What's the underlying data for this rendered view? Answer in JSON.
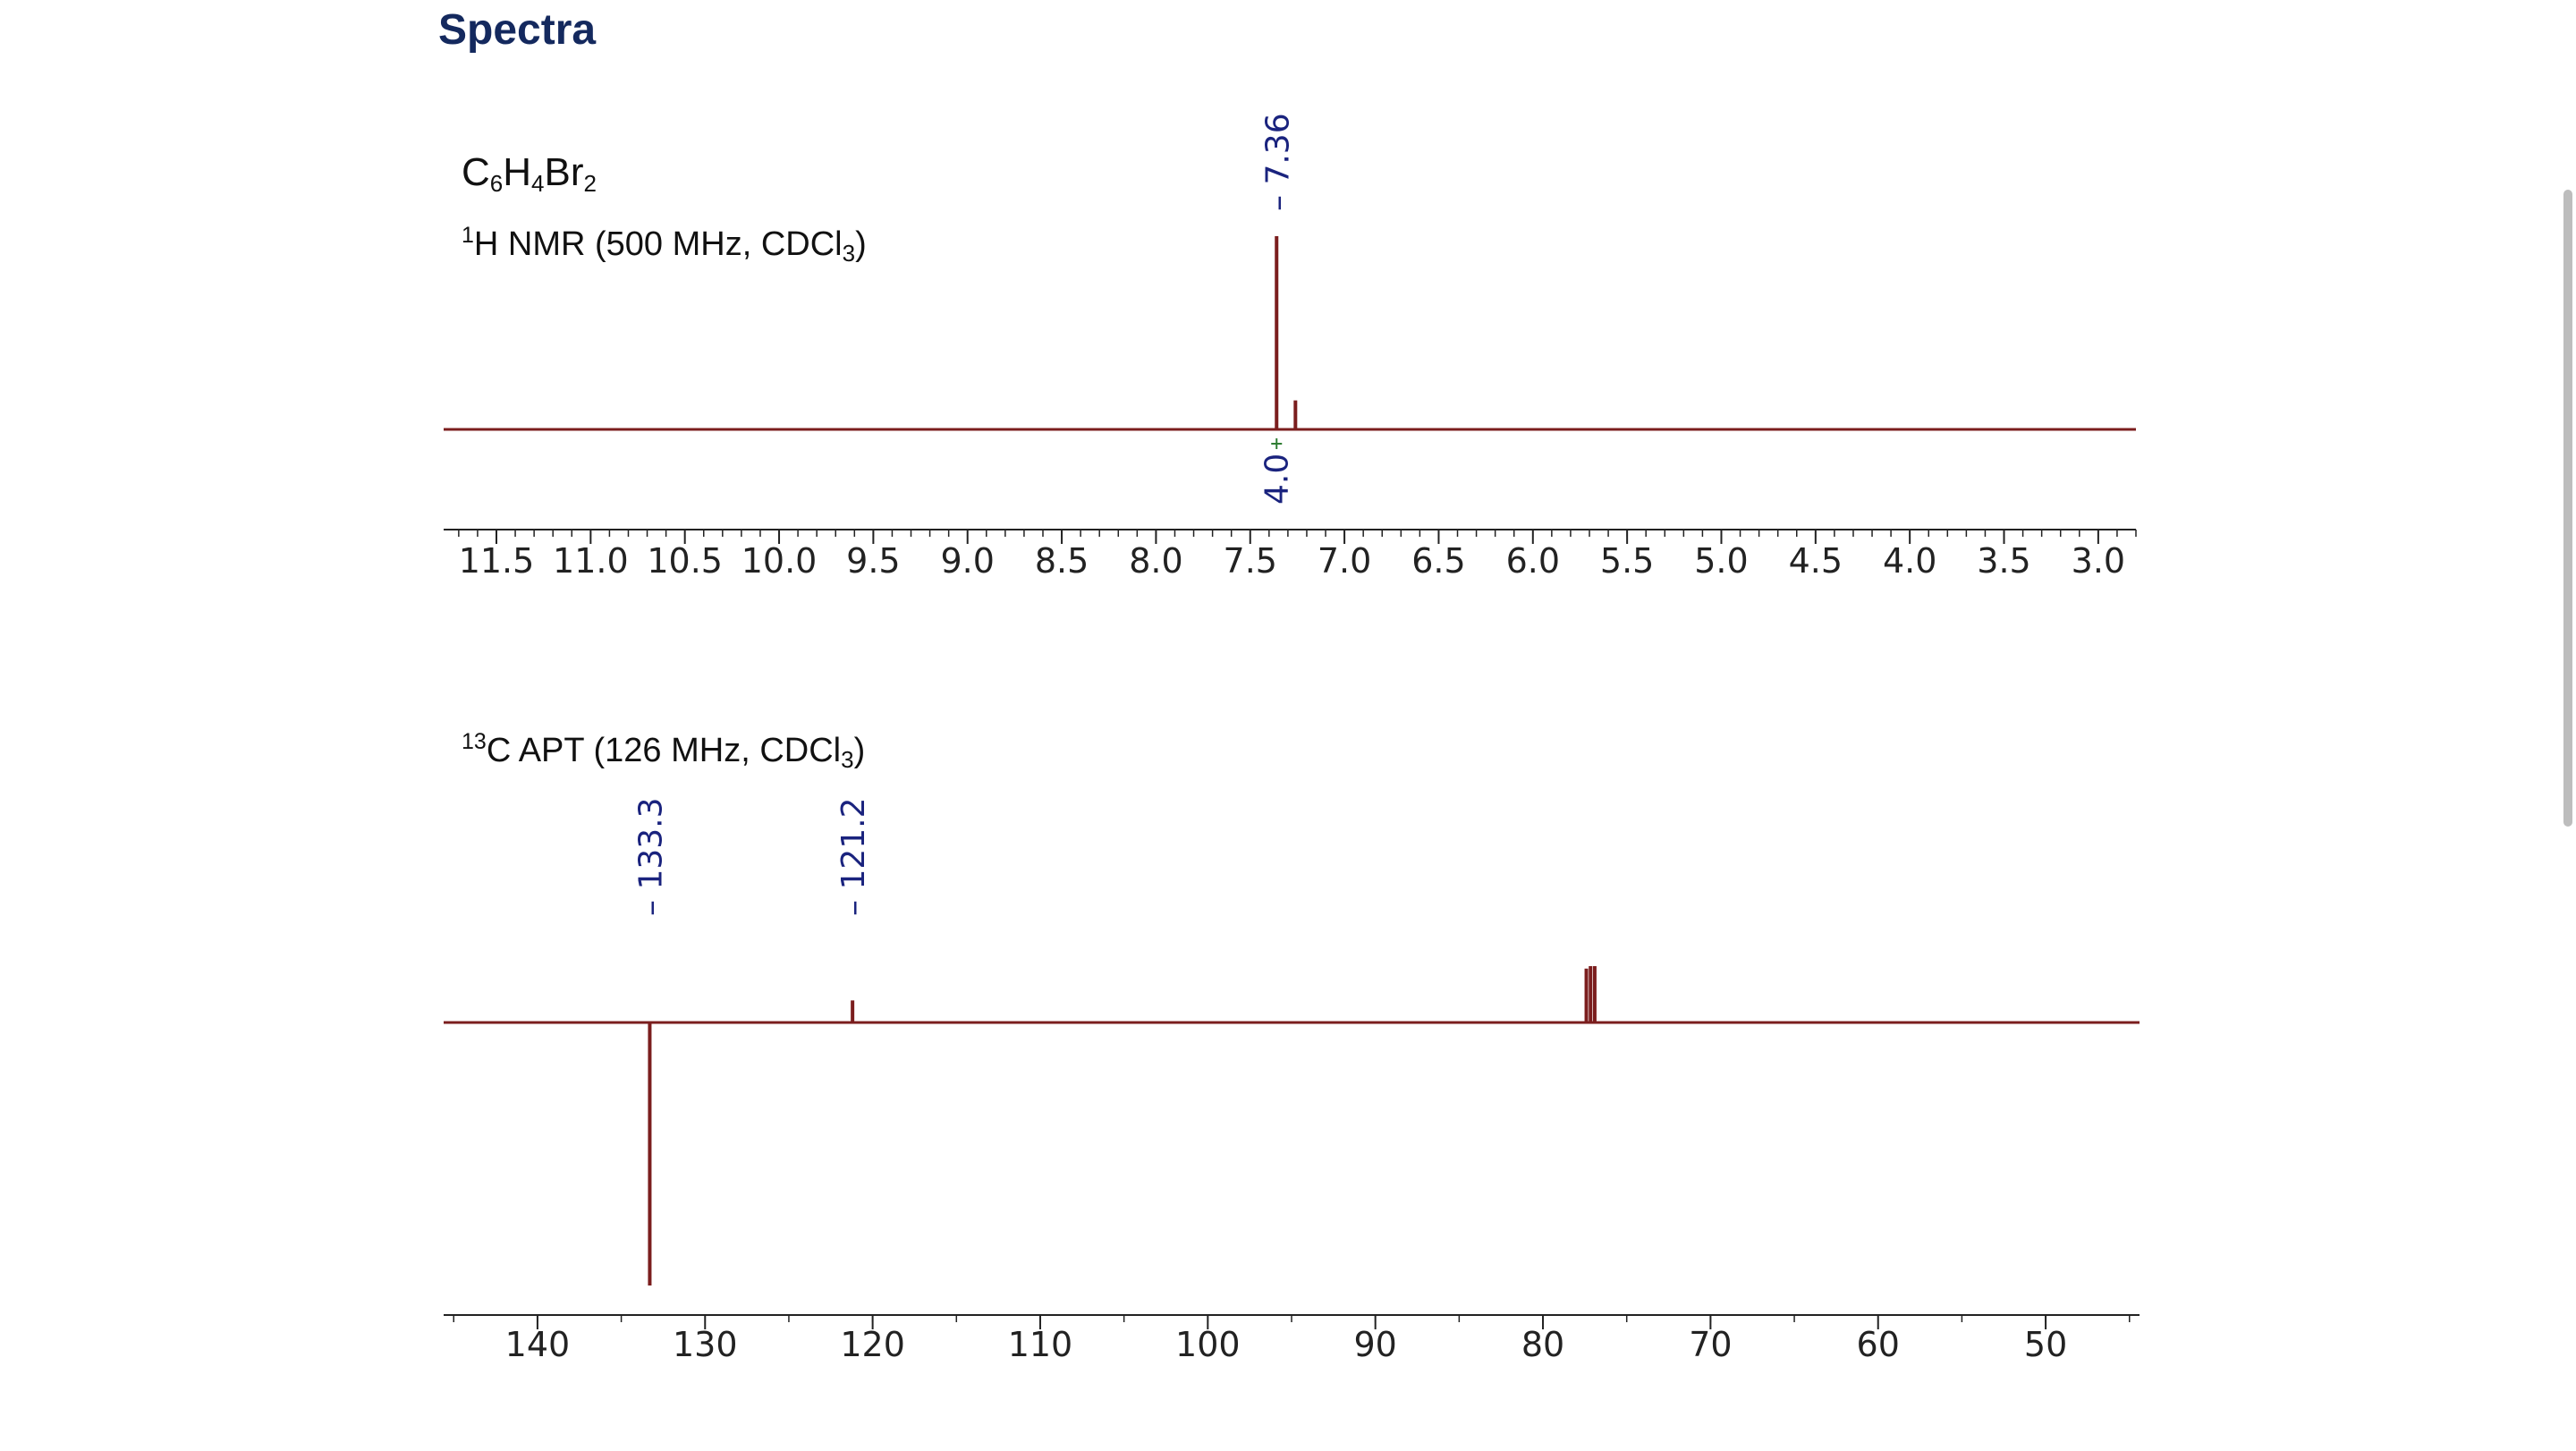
{
  "page": {
    "title": "Spectra",
    "formula": {
      "parts": [
        "C",
        "6",
        "H",
        "4",
        "Br",
        "2"
      ]
    },
    "h_label": {
      "sup": "1",
      "text": "H NMR (500 MHz, CDCl",
      "sub": "3",
      "close": ")"
    },
    "c_label": {
      "sup": "13",
      "text": "C APT (126 MHz, CDCl",
      "sub": "3",
      "close": ")"
    }
  },
  "colors": {
    "title": "#14295e",
    "spectrum": "#7b1e1e",
    "peak_label": "#1a237e",
    "integral": "#2e7d32",
    "axis": "#222222"
  },
  "chart_data": [
    {
      "type": "line",
      "title": "",
      "xlabel": "",
      "ylabel": "",
      "x_axis_reversed": true,
      "xlim": [
        11.78,
        2.8
      ],
      "x_ticks": [
        11.5,
        11.0,
        10.5,
        10.0,
        9.5,
        9.0,
        8.5,
        8.0,
        7.5,
        7.0,
        6.5,
        6.0,
        5.5,
        5.0,
        4.5,
        4.0,
        3.5,
        3.0
      ],
      "x_tick_labels": [
        "11.5",
        "11.0",
        "10.5",
        "10.0",
        "9.5",
        "9.0",
        "8.5",
        "8.0",
        "7.5",
        "7.0",
        "6.5",
        "6.0",
        "5.5",
        "5.0",
        "4.5",
        "4.0",
        "3.5",
        "3.0"
      ],
      "ylim": [
        -1.0,
        1.2
      ],
      "series": [
        {
          "peaks": [
            {
              "x": 7.36,
              "y": 1.0
            },
            {
              "x": 7.26,
              "y": 0.15
            }
          ]
        }
      ],
      "peak_labels": [
        {
          "x": 7.36,
          "text": "7.36"
        }
      ],
      "integrals": [
        {
          "x": 7.36,
          "text": "4.0"
        }
      ],
      "grid": false
    },
    {
      "type": "line",
      "title": "",
      "xlabel": "",
      "ylabel": "",
      "x_axis_reversed": true,
      "xlim": [
        145.6,
        44.4
      ],
      "x_ticks": [
        140,
        130,
        120,
        110,
        100,
        90,
        80,
        70,
        60,
        50
      ],
      "x_tick_labels": [
        "140",
        "130",
        "120",
        "110",
        "100",
        "90",
        "80",
        "70",
        "60",
        "50"
      ],
      "ylim": [
        -1.1,
        1.0
      ],
      "series": [
        {
          "peaks": [
            {
              "x": 133.3,
              "y": -1.0
            },
            {
              "x": 121.2,
              "y": 0.18
            },
            {
              "x": 77.41,
              "y": 0.44
            },
            {
              "x": 77.16,
              "y": 0.46
            },
            {
              "x": 76.91,
              "y": 0.46
            }
          ]
        }
      ],
      "peak_labels": [
        {
          "x": 133.3,
          "text": "133.3"
        },
        {
          "x": 121.2,
          "text": "121.2"
        }
      ],
      "grid": false
    }
  ]
}
